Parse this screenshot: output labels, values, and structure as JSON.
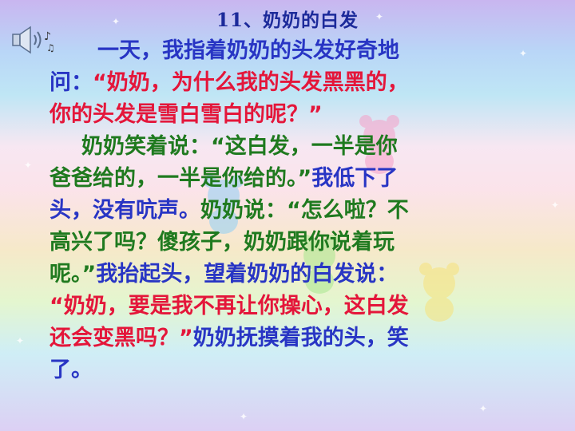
{
  "title": "11、奶奶的白发",
  "icons": {
    "audio": "speaker-music-icon"
  },
  "colors": {
    "blue": "#2835c4",
    "red": "#e4163a",
    "green": "#1f7a1f",
    "title": "#1c2a9a"
  },
  "lines": [
    [
      {
        "t": "一天，我指着奶奶的头发好奇地",
        "c": "b"
      }
    ],
    [
      {
        "t": "问：",
        "c": "b"
      },
      {
        "t": "“奶奶，为什么我的头发黑黑的，",
        "c": "r"
      }
    ],
    [
      {
        "t": "你的头发是雪白雪白的呢？”",
        "c": "r"
      }
    ],
    [
      {
        "t": "奶奶笑着说：“这白发，一半是你",
        "c": "g"
      }
    ],
    [
      {
        "t": "爸爸给的，一半是你给的。”",
        "c": "g"
      },
      {
        "t": "我低下了",
        "c": "b"
      }
    ],
    [
      {
        "t": "头，没有吭声。",
        "c": "b"
      },
      {
        "t": "奶奶说：“怎么啦？不",
        "c": "g"
      }
    ],
    [
      {
        "t": "高兴了吗？傻孩子，奶奶跟你说着玩",
        "c": "g"
      }
    ],
    [
      {
        "t": "呢。”",
        "c": "g"
      },
      {
        "t": "我抬起头，望着奶奶的白发说：",
        "c": "b"
      }
    ],
    [
      {
        "t": "“奶奶，要是我不再让你操心，这白发",
        "c": "r"
      }
    ],
    [
      {
        "t": "还会变黑吗？”",
        "c": "r"
      },
      {
        "t": "奶奶抚摸着我的头，笑",
        "c": "b"
      }
    ],
    [
      {
        "t": "了。",
        "c": "b"
      }
    ]
  ]
}
